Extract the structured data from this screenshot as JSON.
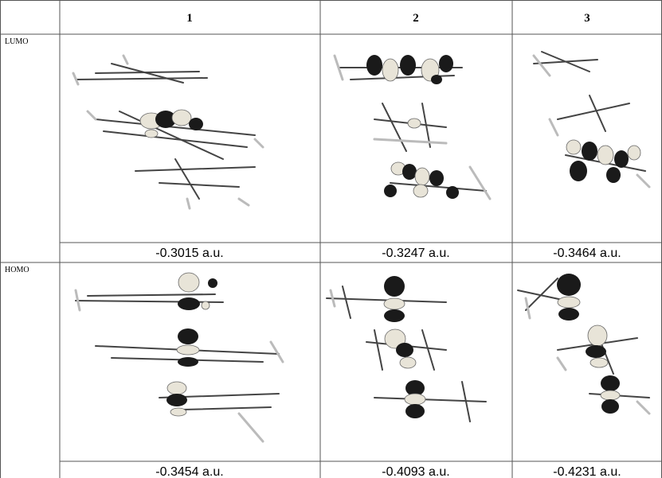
{
  "table": {
    "header": [
      "1",
      "2",
      "3"
    ],
    "rows": [
      {
        "label": "LUMO",
        "energies": [
          "-0.3015 a.u.",
          "-0.3247 a.u.",
          "-0.3464 a.u."
        ]
      },
      {
        "label": "HOMO",
        "energies": [
          "-0.3454 a.u.",
          "-0.4093 a.u.",
          "-0.4231 a.u."
        ]
      }
    ]
  }
}
